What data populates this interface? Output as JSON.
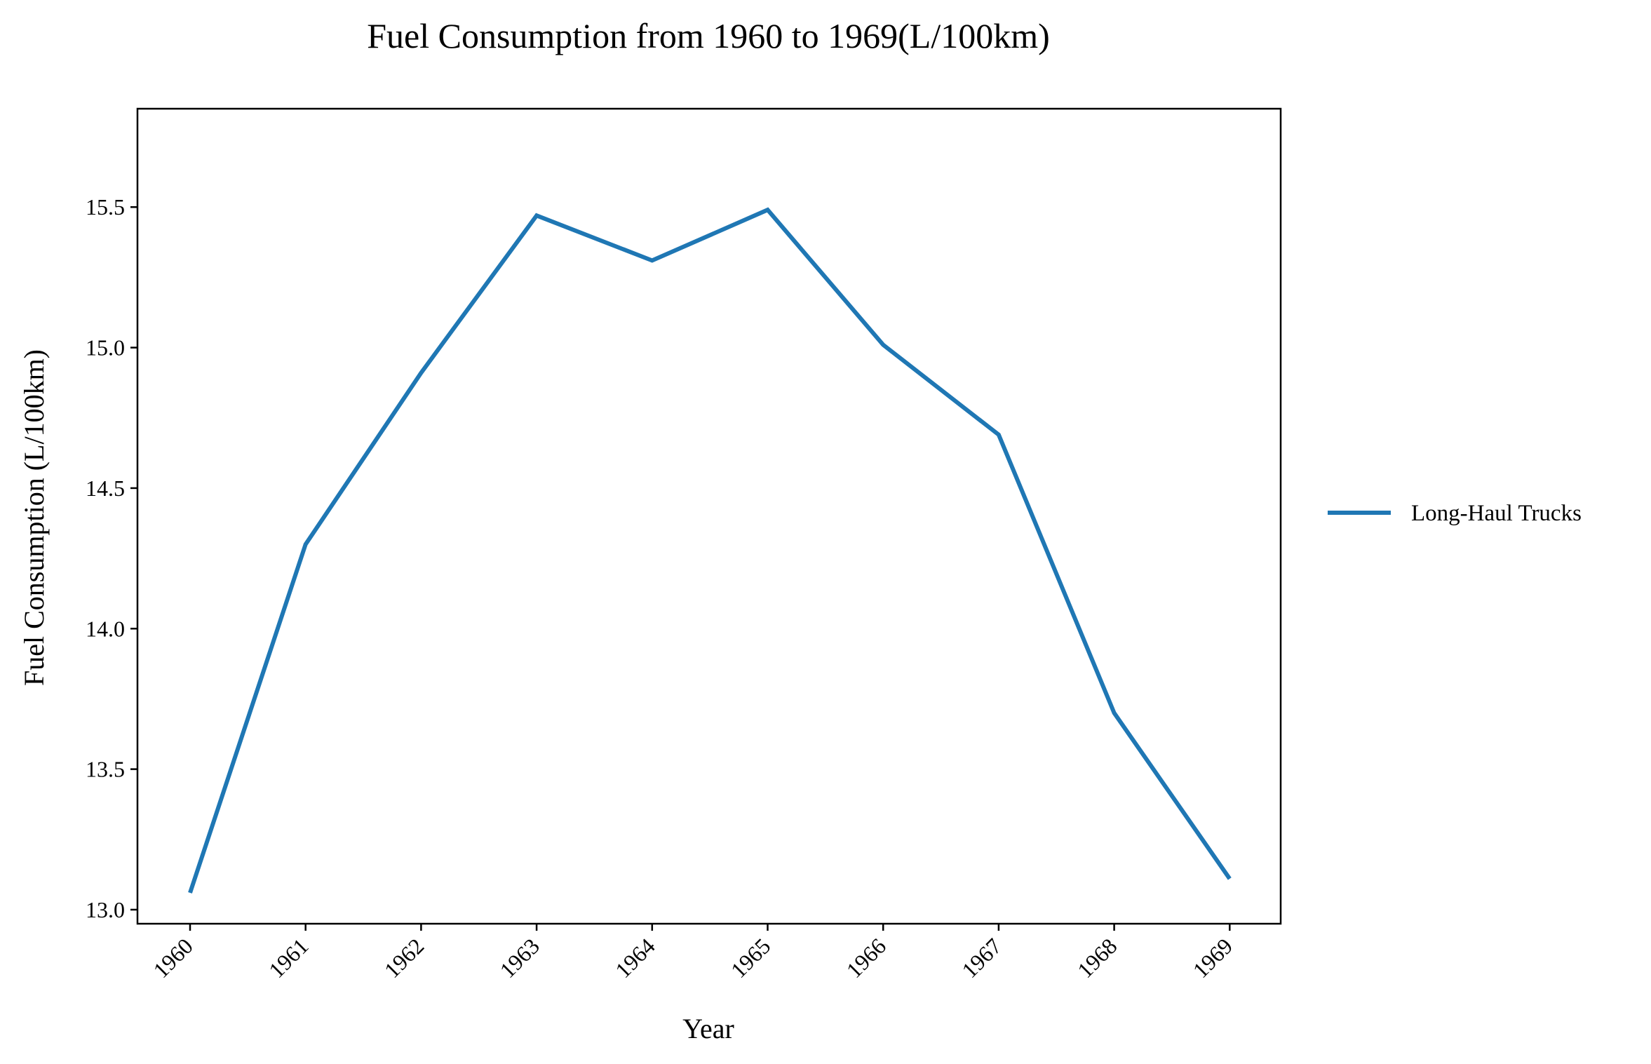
{
  "chart_data": {
    "type": "line",
    "title": "Fuel Consumption from 1960 to 1969(L/100km)",
    "xlabel": "Year",
    "ylabel": "Fuel Consumption (L/100km)",
    "x": [
      "1960",
      "1961",
      "1962",
      "1963",
      "1964",
      "1965",
      "1966",
      "1967",
      "1968",
      "1969"
    ],
    "series": [
      {
        "name": "Long-Haul Trucks",
        "color": "#1f77b4",
        "values": [
          13.06,
          14.3,
          14.91,
          15.47,
          15.31,
          15.49,
          15.01,
          14.69,
          13.7,
          13.11
        ]
      }
    ],
    "ylim": [
      12.95,
      15.85
    ],
    "yticks": [
      "13.0",
      "13.5",
      "14.0",
      "14.5",
      "15.0",
      "15.5"
    ],
    "grid": false,
    "legend": "right-outside"
  }
}
